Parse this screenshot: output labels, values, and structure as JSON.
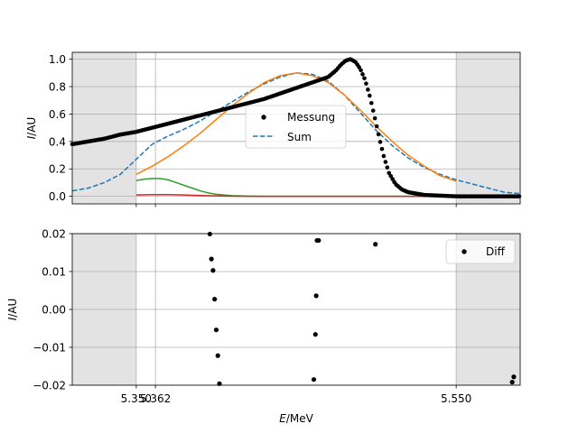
{
  "chart_data": [
    {
      "type": "scatter",
      "ylabel_var": "I",
      "ylabel_unit": "/AU",
      "xlim": [
        5.31,
        5.59
      ],
      "ylim": [
        -0.055,
        1.05
      ],
      "yticks": [
        0.0,
        0.2,
        0.4,
        0.6,
        0.8,
        1.0
      ],
      "ytick_labels": [
        "0.0",
        "0.2",
        "0.4",
        "0.6",
        "0.8",
        "1.0"
      ],
      "xgrid": [
        5.35,
        5.362,
        5.55
      ],
      "grid": true,
      "shaded_x_ranges": [
        [
          5.31,
          5.35
        ],
        [
          5.55,
          5.59
        ]
      ],
      "legend": {
        "placement": "center",
        "entries": [
          "Messung",
          "Sum"
        ]
      },
      "measurement": {
        "name": "Messung",
        "color": "#000000",
        "x": [
          5.31,
          5.32,
          5.33,
          5.34,
          5.35,
          5.36,
          5.37,
          5.38,
          5.39,
          5.4,
          5.41,
          5.42,
          5.43,
          5.44,
          5.45,
          5.46,
          5.465,
          5.47,
          5.475,
          5.478,
          5.481,
          5.484,
          5.487,
          5.49,
          5.493,
          5.496,
          5.499,
          5.502,
          5.505,
          5.508,
          5.512,
          5.516,
          5.52,
          5.53,
          5.54,
          5.55,
          5.56,
          5.57,
          5.59
        ],
        "y": [
          0.38,
          0.4,
          0.42,
          0.45,
          0.47,
          0.5,
          0.53,
          0.56,
          0.59,
          0.62,
          0.65,
          0.68,
          0.71,
          0.75,
          0.79,
          0.83,
          0.85,
          0.87,
          0.92,
          0.96,
          0.99,
          1.0,
          0.98,
          0.93,
          0.85,
          0.73,
          0.58,
          0.42,
          0.28,
          0.17,
          0.09,
          0.05,
          0.03,
          0.01,
          0.005,
          0.0,
          0.0,
          0.0,
          0.0
        ]
      },
      "series": [
        {
          "name": "Sum",
          "style": "dashed",
          "color": "#1f77b4",
          "x": [
            5.31,
            5.32,
            5.33,
            5.34,
            5.35,
            5.36,
            5.37,
            5.38,
            5.39,
            5.4,
            5.41,
            5.42,
            5.43,
            5.44,
            5.45,
            5.46,
            5.47,
            5.48,
            5.49,
            5.5,
            5.51,
            5.52,
            5.53,
            5.54,
            5.55,
            5.56,
            5.57,
            5.58,
            5.59
          ],
          "y": [
            0.04,
            0.06,
            0.1,
            0.16,
            0.27,
            0.38,
            0.44,
            0.49,
            0.55,
            0.62,
            0.69,
            0.76,
            0.82,
            0.87,
            0.9,
            0.89,
            0.84,
            0.74,
            0.61,
            0.48,
            0.37,
            0.28,
            0.21,
            0.16,
            0.12,
            0.09,
            0.06,
            0.03,
            0.02
          ]
        },
        {
          "name": "",
          "color": "#ff7f0e",
          "x": [
            5.35,
            5.36,
            5.37,
            5.38,
            5.39,
            5.4,
            5.41,
            5.42,
            5.43,
            5.44,
            5.45,
            5.46,
            5.47,
            5.48,
            5.49,
            5.5,
            5.51,
            5.52,
            5.53,
            5.54,
            5.55
          ],
          "y": [
            0.16,
            0.22,
            0.29,
            0.37,
            0.46,
            0.56,
            0.66,
            0.75,
            0.83,
            0.88,
            0.9,
            0.88,
            0.83,
            0.74,
            0.63,
            0.51,
            0.4,
            0.3,
            0.22,
            0.15,
            0.11
          ]
        },
        {
          "name": "",
          "color": "#2ca02c",
          "x": [
            5.35,
            5.355,
            5.36,
            5.365,
            5.37,
            5.375,
            5.38,
            5.385,
            5.39,
            5.395,
            5.4,
            5.41,
            5.42,
            5.43,
            5.55
          ],
          "y": [
            0.115,
            0.125,
            0.13,
            0.13,
            0.12,
            0.1,
            0.08,
            0.06,
            0.04,
            0.025,
            0.015,
            0.005,
            0.002,
            0.0,
            0.0
          ]
        },
        {
          "name": "",
          "color": "#d62728",
          "x": [
            5.35,
            5.36,
            5.37,
            5.38,
            5.39,
            5.4,
            5.41,
            5.42,
            5.55
          ],
          "y": [
            0.01,
            0.012,
            0.012,
            0.01,
            0.006,
            0.003,
            0.001,
            0.0,
            0.0
          ]
        }
      ]
    },
    {
      "type": "scatter",
      "ylabel_var": "I",
      "ylabel_unit": "/AU",
      "xlabel_var": "E",
      "xlabel_unit": "/MeV",
      "xlim": [
        5.31,
        5.59
      ],
      "ylim": [
        -0.02,
        0.02
      ],
      "yticks": [
        -0.02,
        -0.01,
        0.0,
        0.01,
        0.02
      ],
      "ytick_labels": [
        "−0.02",
        "−0.01",
        "0.00",
        "0.01",
        "0.02"
      ],
      "xticks": [
        5.35,
        5.362,
        5.55
      ],
      "xtick_labels": [
        "5.350",
        "5.362",
        "5.550"
      ],
      "grid": true,
      "shaded_x_ranges": [
        [
          5.31,
          5.35
        ],
        [
          5.55,
          5.59
        ]
      ],
      "legend": {
        "placement": "top-right",
        "entries": [
          "Diff"
        ]
      },
      "series": [
        {
          "name": "Diff",
          "color": "#000000",
          "x": [
            5.396,
            5.397,
            5.398,
            5.399,
            5.4,
            5.401,
            5.402,
            5.461,
            5.462,
            5.4625,
            5.463,
            5.464,
            5.4995,
            5.585,
            5.586
          ],
          "y": [
            0.0199,
            0.0133,
            0.0103,
            0.0027,
            -0.0054,
            -0.0122,
            -0.0196,
            -0.0185,
            -0.0066,
            0.0036,
            0.0182,
            0.0182,
            0.0172,
            -0.0192,
            -0.0178
          ]
        }
      ]
    }
  ]
}
